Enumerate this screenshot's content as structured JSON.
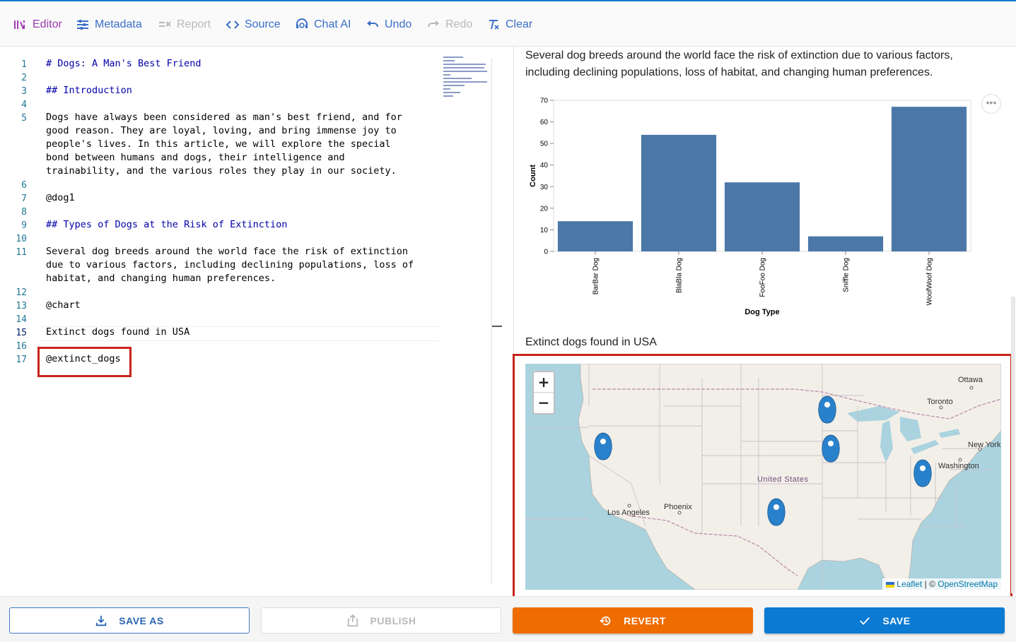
{
  "toolbar": {
    "editor": "Editor",
    "metadata": "Metadata",
    "report": "Report",
    "source": "Source",
    "chat_ai": "Chat AI",
    "undo": "Undo",
    "redo": "Redo",
    "clear": "Clear"
  },
  "editor": {
    "line_numbers": [
      "1",
      "2",
      "3",
      "4",
      "5",
      "6",
      "7",
      "8",
      "9",
      "10",
      "11",
      "12",
      "13",
      "14",
      "15",
      "16",
      "17"
    ],
    "lines": {
      "l1": "# Dogs: A Man's Best Friend",
      "l3": "## Introduction",
      "l5a": "Dogs have always been considered as man's best friend, and for",
      "l5b": "good reason. They are loyal, loving, and bring immense joy to",
      "l5c": "people's lives. In this article, we will explore the special",
      "l5d": "bond between humans and dogs, their intelligence and",
      "l5e": "trainability, and the various roles they play in our society.",
      "l7": "@dog1",
      "l9": "## Types of Dogs at the Risk of Extinction",
      "l11a": "Several dog breeds around the world face the risk of extinction",
      "l11b": "due to various factors, including declining populations, loss of",
      "l11c": "habitat, and changing human preferences.",
      "l13": "@chart",
      "l15": "Extinct dogs found in USA",
      "l17": "@extinct_dogs"
    }
  },
  "preview": {
    "paragraph": "Several dog breeds around the world face the risk of extinction due to various factors, including declining populations, loss of habitat, and changing human preferences.",
    "map_title": "Extinct dogs found in USA",
    "map": {
      "zoom_in": "+",
      "zoom_out": "−",
      "labels": {
        "ottawa": "Ottawa",
        "toronto": "Toronto",
        "new_york": "New York",
        "washington": "Washington",
        "united_states": "United States",
        "phoenix": "Phoenix",
        "los_angeles": "Los Angeles"
      },
      "attribution_leaflet": "Leaflet",
      "attribution_sep": " | © ",
      "attribution_osm": "OpenStreetMap",
      "colors": {
        "water": "#aad3df",
        "land": "#f2efe9",
        "marker": "#2a81cb"
      }
    }
  },
  "chart_data": {
    "type": "bar",
    "categories": [
      "BarBar Dog",
      "BlaBla Dog",
      "FooFoo Dog",
      "Sniffle Dog",
      "WoofWoof Dog"
    ],
    "values": [
      14,
      54,
      32,
      7,
      67
    ],
    "xlabel": "Dog Type",
    "ylabel": "Count",
    "ylim": [
      0,
      70
    ],
    "yticks": [
      0,
      10,
      20,
      30,
      40,
      50,
      60,
      70
    ],
    "grid": false,
    "color": "#4c78a8"
  },
  "bottom": {
    "save_as": "SAVE AS",
    "publish": "PUBLISH",
    "revert": "REVERT",
    "save": "SAVE"
  }
}
